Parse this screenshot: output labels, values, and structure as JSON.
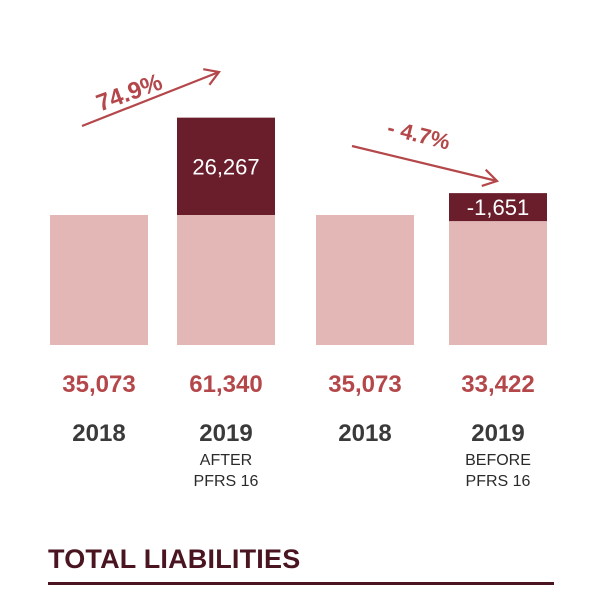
{
  "chart_data": {
    "type": "bar",
    "title": "TOTAL LIABILITIES",
    "categories": [
      {
        "year": "2018",
        "note_line1": "",
        "note_line2": ""
      },
      {
        "year": "2019",
        "note_line1": "AFTER",
        "note_line2": "PFRS 16"
      },
      {
        "year": "2018",
        "note_line1": "",
        "note_line2": ""
      },
      {
        "year": "2019",
        "note_line1": "BEFORE",
        "note_line2": "PFRS 16"
      }
    ],
    "values": [
      35073,
      61340,
      35073,
      33422
    ],
    "value_labels": [
      "35,073",
      "61,340",
      "35,073",
      "33,422"
    ],
    "series": [
      {
        "values": [
          35073,
          35073,
          35073,
          33422
        ]
      },
      {
        "values": [
          0,
          26267,
          0,
          -1651
        ]
      }
    ],
    "segment_labels": [
      "",
      "26,267",
      "",
      "-1,651"
    ],
    "annotations": [
      {
        "text": "74.9%",
        "from_bar": 0,
        "to_bar": 1,
        "direction": "up"
      },
      {
        "text": "- 4.7%",
        "from_bar": 2,
        "to_bar": 3,
        "direction": "down"
      }
    ],
    "colors": {
      "base": "#e2b7b6",
      "change": "#6a1e2c",
      "value_text": "#b4474a",
      "category_text": "#3a3a3a",
      "note_text": "#2a2a2a",
      "arrow": "#b4474a",
      "segment_text": "#ffffff",
      "title": "#4a1521"
    }
  }
}
